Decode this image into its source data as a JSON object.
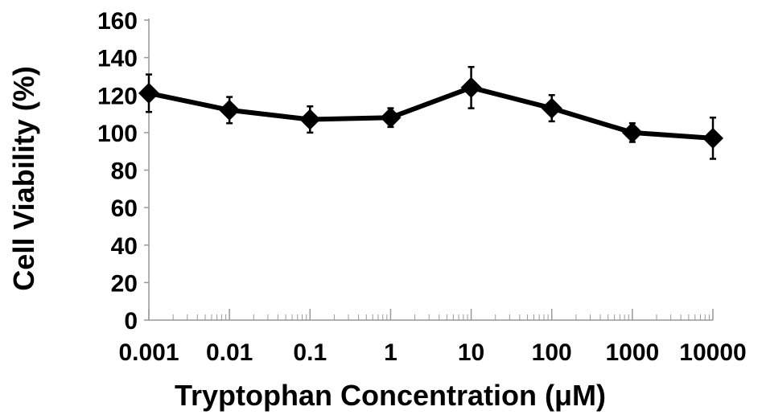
{
  "chart_data": {
    "type": "line",
    "title": "",
    "xlabel": "Tryptophan Concentration (μM)",
    "ylabel": "Cell Viability (%)",
    "x_scale": "log",
    "xlim": [
      0.001,
      10000
    ],
    "ylim": [
      0,
      160
    ],
    "x_tick_labels": [
      "0.001",
      "0.01",
      "0.1",
      "1",
      "10",
      "100",
      "1000",
      "10000"
    ],
    "y_tick_labels": [
      "0",
      "20",
      "40",
      "60",
      "80",
      "100",
      "120",
      "140",
      "160"
    ],
    "grid": false,
    "legend": "none",
    "series": [
      {
        "x": [
          0.001,
          0.01,
          0.1,
          1,
          10,
          100,
          1000,
          10000
        ],
        "y": [
          121,
          112,
          107,
          108,
          124,
          113,
          100,
          97
        ],
        "error": [
          10,
          7,
          7,
          5,
          11,
          7,
          5,
          11
        ],
        "marker": "diamond",
        "color": "#000000"
      }
    ]
  }
}
